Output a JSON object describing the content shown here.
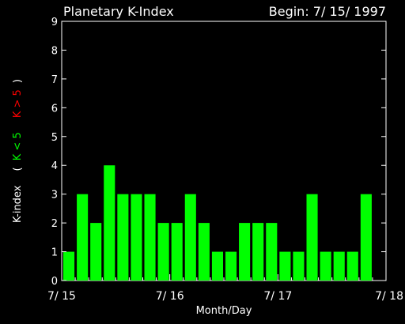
{
  "header": {
    "title": "Planetary K-Index",
    "begin": "Begin: 7/ 15/ 1997"
  },
  "chart_data": {
    "type": "bar",
    "title": "Planetary K-Index",
    "xlabel": "Month/Day",
    "ylabel": "K-index",
    "ylim": [
      0,
      9
    ],
    "yticks": [
      "0",
      "1",
      "2",
      "3",
      "4",
      "5",
      "6",
      "7",
      "8",
      "9"
    ],
    "xlim": [
      0,
      24
    ],
    "xticks": [
      {
        "value": 0,
        "label": "7/ 15"
      },
      {
        "value": 8,
        "label": "7/ 16"
      },
      {
        "value": 16,
        "label": "7/ 17"
      },
      {
        "value": 24,
        "label": "7/ 18"
      }
    ],
    "values": [
      1,
      3,
      2,
      4,
      3,
      3,
      3,
      2,
      2,
      3,
      2,
      1,
      1,
      2,
      2,
      2,
      1,
      1,
      3,
      1,
      1,
      1,
      3
    ],
    "legend": {
      "bracket_open": "(",
      "bracket_close": ")",
      "low": "K < 5",
      "high": "K > 5"
    },
    "colors": {
      "background": "#000000",
      "axes": "#ffffff",
      "low": "#00ff00",
      "high": "#ff0000"
    },
    "grid": false
  }
}
